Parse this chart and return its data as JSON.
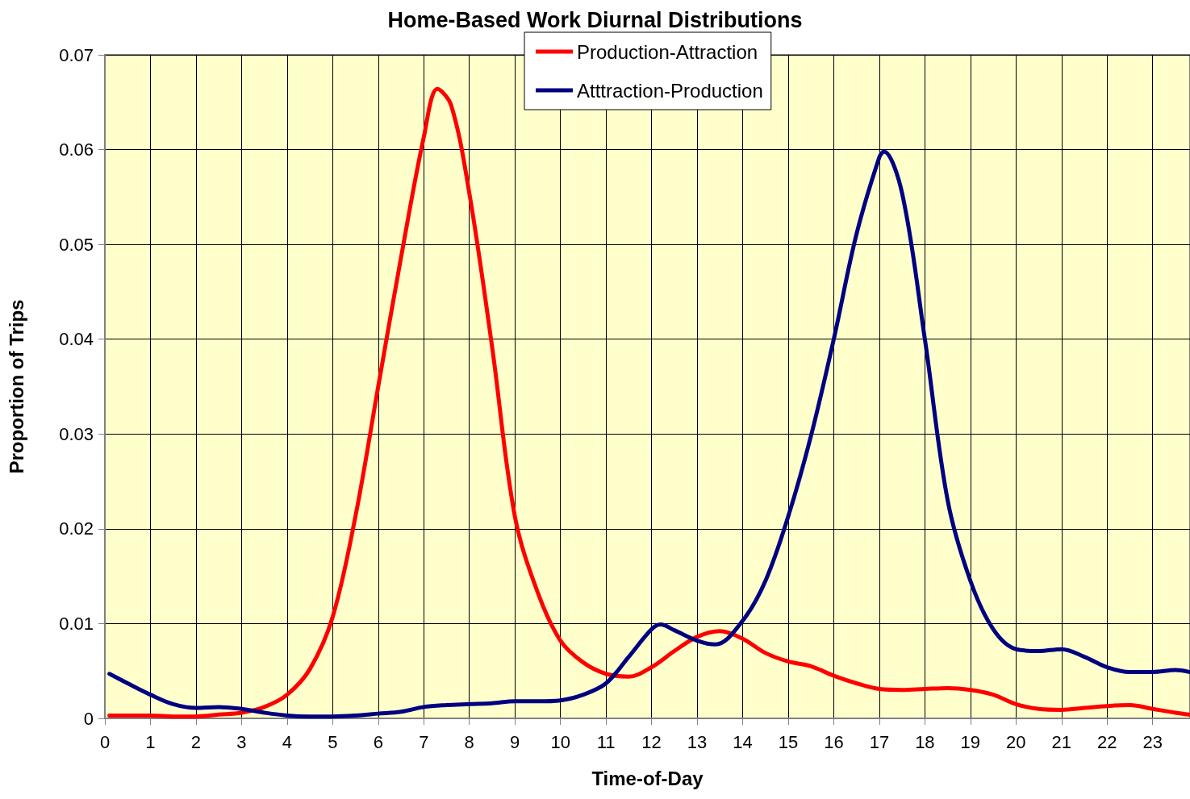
{
  "chart_data": {
    "type": "line",
    "title": "Home-Based Work Diurnal Distributions",
    "xlabel": "Time-of-Day",
    "ylabel": "Proportion of Trips",
    "xlim": [
      0,
      23.82
    ],
    "xticks": [
      0,
      1,
      2,
      3,
      4,
      5,
      6,
      7,
      8,
      9,
      10,
      11,
      12,
      13,
      14,
      15,
      16,
      17,
      18,
      19,
      20,
      21,
      22,
      23
    ],
    "ylim": [
      0,
      0.07
    ],
    "yticks": [
      0,
      0.01,
      0.02,
      0.03,
      0.04,
      0.05,
      0.06,
      0.07
    ],
    "grid": true,
    "legend": "top",
    "marker": "none",
    "line_style": "solid",
    "series": [
      {
        "name": "Production-Attraction",
        "color": "#ff0000",
        "x": [
          0.1,
          0.5,
          1,
          1.5,
          2,
          2.5,
          3,
          3.5,
          4,
          4.5,
          5,
          5.5,
          6,
          6.5,
          7,
          7.3,
          7.6,
          8,
          8.5,
          9,
          9.5,
          10,
          10.5,
          11,
          11.5,
          12,
          12.5,
          13,
          13.5,
          14,
          14.5,
          15,
          15.5,
          16,
          16.5,
          17,
          17.5,
          18,
          18.5,
          19,
          19.5,
          20,
          20.5,
          21,
          21.5,
          22,
          22.5,
          23,
          23.5,
          23.8
        ],
        "values": [
          0.0003,
          0.0003,
          0.0003,
          0.0002,
          0.0002,
          0.0004,
          0.0006,
          0.0012,
          0.0025,
          0.0052,
          0.0107,
          0.0213,
          0.035,
          0.0486,
          0.0613,
          0.0664,
          0.0647,
          0.0554,
          0.0392,
          0.0213,
          0.0133,
          0.0082,
          0.0059,
          0.0047,
          0.0044,
          0.0054,
          0.0071,
          0.0086,
          0.0092,
          0.0084,
          0.0069,
          0.006,
          0.0055,
          0.0045,
          0.0037,
          0.0031,
          0.003,
          0.0031,
          0.0032,
          0.003,
          0.0025,
          0.0015,
          0.001,
          0.0009,
          0.0011,
          0.0013,
          0.0014,
          0.001,
          0.0006,
          0.0004
        ]
      },
      {
        "name": "Atttraction-Production",
        "color": "#000080",
        "x": [
          0.1,
          0.5,
          1,
          1.5,
          2,
          2.5,
          3,
          3.5,
          4,
          4.5,
          5,
          5.5,
          6,
          6.5,
          7,
          7.5,
          8,
          8.5,
          9,
          9.5,
          10,
          10.5,
          11,
          11.5,
          12,
          12.2,
          12.5,
          13,
          13.4,
          14,
          14.5,
          15,
          15.5,
          16,
          16.5,
          17,
          17.1,
          17.5,
          18,
          18.5,
          19,
          19.5,
          20,
          20.5,
          21,
          21.5,
          22,
          22.5,
          23,
          23.5,
          23.8
        ],
        "values": [
          0.0047,
          0.0037,
          0.0025,
          0.0015,
          0.0011,
          0.0012,
          0.001,
          0.0006,
          0.0003,
          0.0002,
          0.0002,
          0.0003,
          0.0005,
          0.0007,
          0.0012,
          0.0014,
          0.0015,
          0.0016,
          0.0018,
          0.0018,
          0.0019,
          0.0025,
          0.0037,
          0.0065,
          0.0094,
          0.0099,
          0.0093,
          0.0082,
          0.0078,
          0.0103,
          0.0145,
          0.0213,
          0.0298,
          0.04,
          0.0511,
          0.0592,
          0.0598,
          0.0554,
          0.04,
          0.023,
          0.0145,
          0.0094,
          0.0073,
          0.0071,
          0.0073,
          0.0065,
          0.0054,
          0.0049,
          0.0049,
          0.0051,
          0.0049
        ]
      }
    ]
  }
}
